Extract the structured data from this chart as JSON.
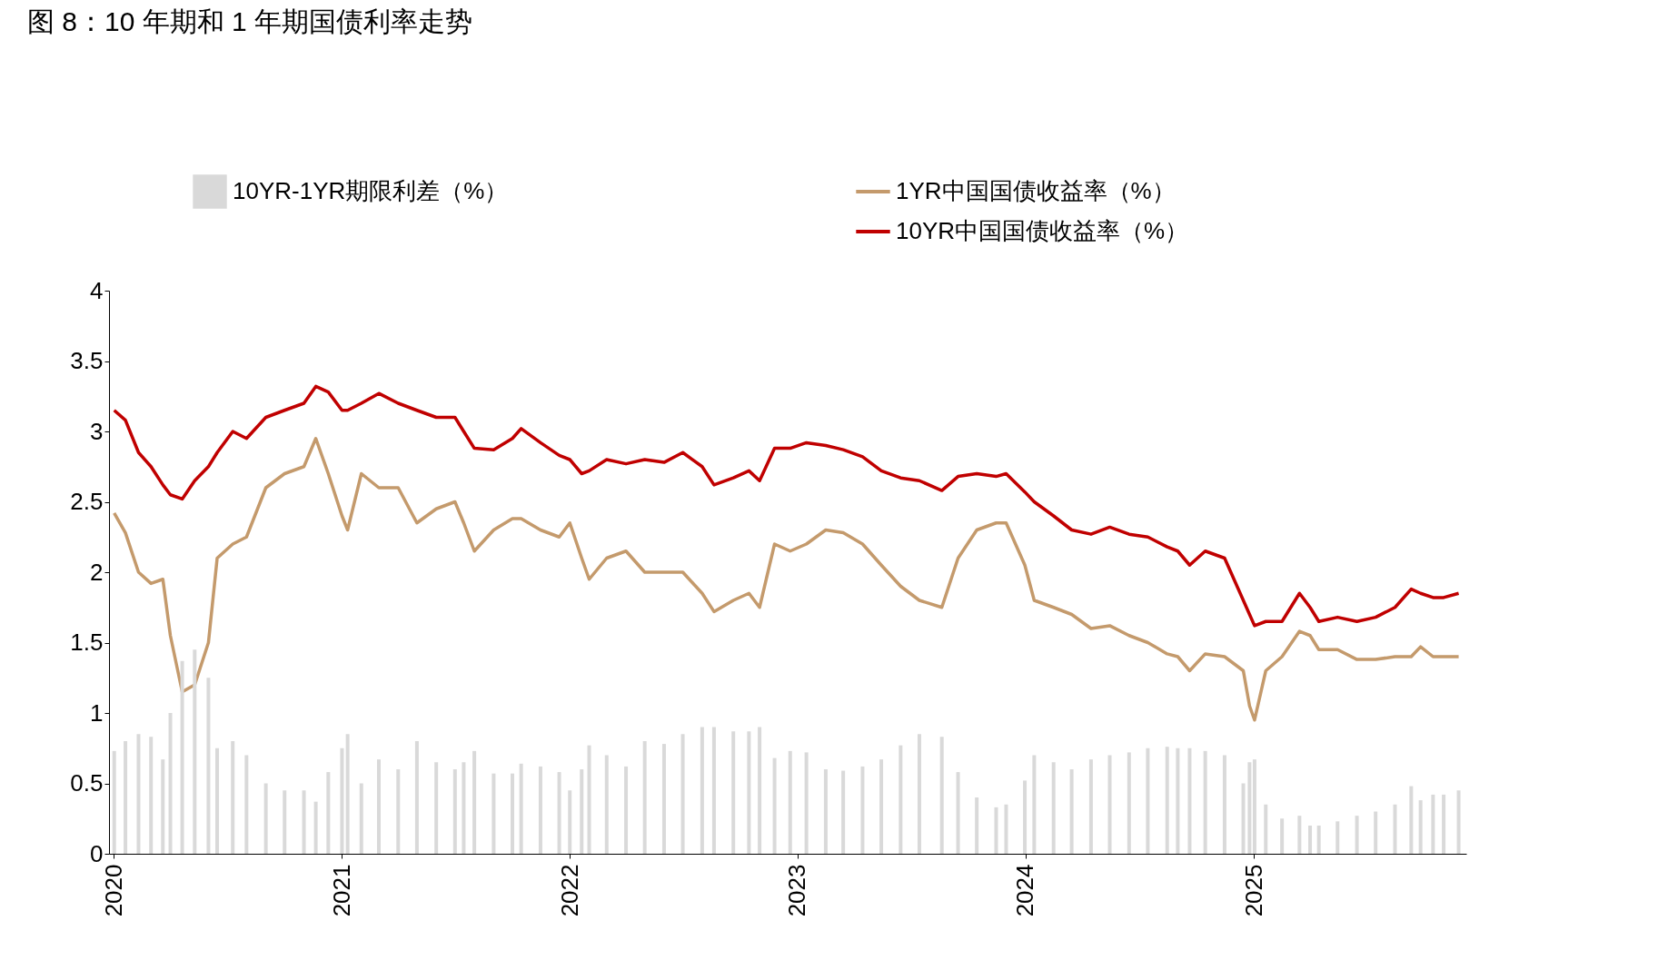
{
  "chart_data": {
    "type": "line",
    "title": "图 8：10 年期和 1 年期国债利率走势",
    "x": [
      "2020-01-02",
      "2020-01-20",
      "2020-02-10",
      "2020-03-01",
      "2020-03-20",
      "2020-04-01",
      "2020-04-20",
      "2020-05-10",
      "2020-06-01",
      "2020-06-15",
      "2020-07-10",
      "2020-08-01",
      "2020-09-01",
      "2020-10-01",
      "2020-11-01",
      "2020-11-20",
      "2020-12-10",
      "2021-01-01",
      "2021-01-10",
      "2021-02-01",
      "2021-03-01",
      "2021-04-01",
      "2021-05-01",
      "2021-06-01",
      "2021-07-01",
      "2021-07-15",
      "2021-08-01",
      "2021-09-01",
      "2021-10-01",
      "2021-10-15",
      "2021-11-15",
      "2021-12-15",
      "2022-01-01",
      "2022-01-20",
      "2022-02-01",
      "2022-03-01",
      "2022-04-01",
      "2022-05-01",
      "2022-06-01",
      "2022-07-01",
      "2022-08-01",
      "2022-08-20",
      "2022-09-20",
      "2022-10-15",
      "2022-11-01",
      "2022-11-25",
      "2022-12-20",
      "2023-01-15",
      "2023-02-15",
      "2023-03-15",
      "2023-04-15",
      "2023-05-15",
      "2023-06-15",
      "2023-07-15",
      "2023-08-20",
      "2023-09-15",
      "2023-10-15",
      "2023-11-15",
      "2023-12-01",
      "2023-12-31",
      "2024-01-15",
      "2024-02-15",
      "2024-03-15",
      "2024-04-15",
      "2024-05-15",
      "2024-06-15",
      "2024-07-15",
      "2024-08-15",
      "2024-09-01",
      "2024-09-20",
      "2024-10-15",
      "2024-11-15",
      "2024-12-15",
      "2024-12-25",
      "2025-01-02",
      "2025-01-20",
      "2025-02-15",
      "2025-03-15",
      "2025-04-01",
      "2025-04-15",
      "2025-05-15",
      "2025-06-15",
      "2025-07-15",
      "2025-08-15",
      "2025-09-10",
      "2025-09-25",
      "2025-10-15",
      "2025-11-01",
      "2025-11-25"
    ],
    "series": [
      {
        "name": "10YR-1YR期限利差（%）",
        "type": "bar",
        "color": "#d9d9d9",
        "values": [
          0.73,
          0.8,
          0.85,
          0.83,
          0.67,
          1.0,
          1.37,
          1.45,
          1.25,
          0.75,
          0.8,
          0.7,
          0.5,
          0.45,
          0.45,
          0.37,
          0.58,
          0.75,
          0.85,
          0.5,
          0.67,
          0.6,
          0.8,
          0.65,
          0.6,
          0.65,
          0.73,
          0.57,
          0.57,
          0.64,
          0.62,
          0.58,
          0.45,
          0.6,
          0.77,
          0.7,
          0.62,
          0.8,
          0.78,
          0.85,
          0.9,
          0.9,
          0.87,
          0.87,
          0.9,
          0.68,
          0.73,
          0.72,
          0.6,
          0.59,
          0.62,
          0.67,
          0.77,
          0.85,
          0.83,
          0.58,
          0.4,
          0.33,
          0.35,
          0.52,
          0.7,
          0.65,
          0.6,
          0.67,
          0.7,
          0.72,
          0.75,
          0.76,
          0.75,
          0.75,
          0.73,
          0.7,
          0.5,
          0.65,
          0.67,
          0.35,
          0.25,
          0.27,
          0.2,
          0.2,
          0.23,
          0.27,
          0.3,
          0.35,
          0.48,
          0.38,
          0.42,
          0.42,
          0.45
        ]
      },
      {
        "name": "1YR中国国债收益率（%）",
        "color": "#c49a6c",
        "values": [
          2.42,
          2.28,
          2.0,
          1.92,
          1.95,
          1.55,
          1.15,
          1.2,
          1.5,
          2.1,
          2.2,
          2.25,
          2.6,
          2.7,
          2.75,
          2.95,
          2.7,
          2.4,
          2.3,
          2.7,
          2.6,
          2.6,
          2.35,
          2.45,
          2.5,
          2.35,
          2.15,
          2.3,
          2.38,
          2.38,
          2.3,
          2.25,
          2.35,
          2.1,
          1.95,
          2.1,
          2.15,
          2.0,
          2.0,
          2.0,
          1.85,
          1.72,
          1.8,
          1.85,
          1.75,
          2.2,
          2.15,
          2.2,
          2.3,
          2.28,
          2.2,
          2.05,
          1.9,
          1.8,
          1.75,
          2.1,
          2.3,
          2.35,
          2.35,
          2.05,
          1.8,
          1.75,
          1.7,
          1.6,
          1.62,
          1.55,
          1.5,
          1.42,
          1.4,
          1.3,
          1.42,
          1.4,
          1.3,
          1.05,
          0.95,
          1.3,
          1.4,
          1.58,
          1.55,
          1.45,
          1.45,
          1.38,
          1.38,
          1.4,
          1.4,
          1.47,
          1.4,
          1.4,
          1.4
        ]
      },
      {
        "name": "10YR中国国债收益率（%）",
        "color": "#c00000",
        "values": [
          3.15,
          3.08,
          2.85,
          2.75,
          2.62,
          2.55,
          2.52,
          2.65,
          2.75,
          2.85,
          3.0,
          2.95,
          3.1,
          3.15,
          3.2,
          3.32,
          3.28,
          3.15,
          3.15,
          3.2,
          3.27,
          3.2,
          3.15,
          3.1,
          3.1,
          3.0,
          2.88,
          2.87,
          2.95,
          3.02,
          2.92,
          2.83,
          2.8,
          2.7,
          2.72,
          2.8,
          2.77,
          2.8,
          2.78,
          2.85,
          2.75,
          2.62,
          2.67,
          2.72,
          2.65,
          2.88,
          2.88,
          2.92,
          2.9,
          2.87,
          2.82,
          2.72,
          2.67,
          2.65,
          2.58,
          2.68,
          2.7,
          2.68,
          2.7,
          2.57,
          2.5,
          2.4,
          2.3,
          2.27,
          2.32,
          2.27,
          2.25,
          2.18,
          2.15,
          2.05,
          2.15,
          2.1,
          1.8,
          1.7,
          1.62,
          1.65,
          1.65,
          1.85,
          1.75,
          1.65,
          1.68,
          1.65,
          1.68,
          1.75,
          1.88,
          1.85,
          1.82,
          1.82,
          1.85
        ]
      }
    ],
    "xlim": [
      "2020-01-01",
      "2025-11-30"
    ],
    "xticks": [
      {
        "value": "2020-01-01",
        "label": "2020"
      },
      {
        "value": "2021-01-01",
        "label": "2021"
      },
      {
        "value": "2022-01-01",
        "label": "2022"
      },
      {
        "value": "2023-01-01",
        "label": "2023"
      },
      {
        "value": "2024-01-01",
        "label": "2024"
      },
      {
        "value": "2025-01-01",
        "label": "2025"
      }
    ],
    "ylim": [
      0,
      4
    ],
    "yticks": [
      0,
      0.5,
      1,
      1.5,
      2,
      2.5,
      3,
      3.5,
      4
    ],
    "grid": false,
    "legend": "top",
    "marker": "none",
    "line_style": "solid"
  }
}
